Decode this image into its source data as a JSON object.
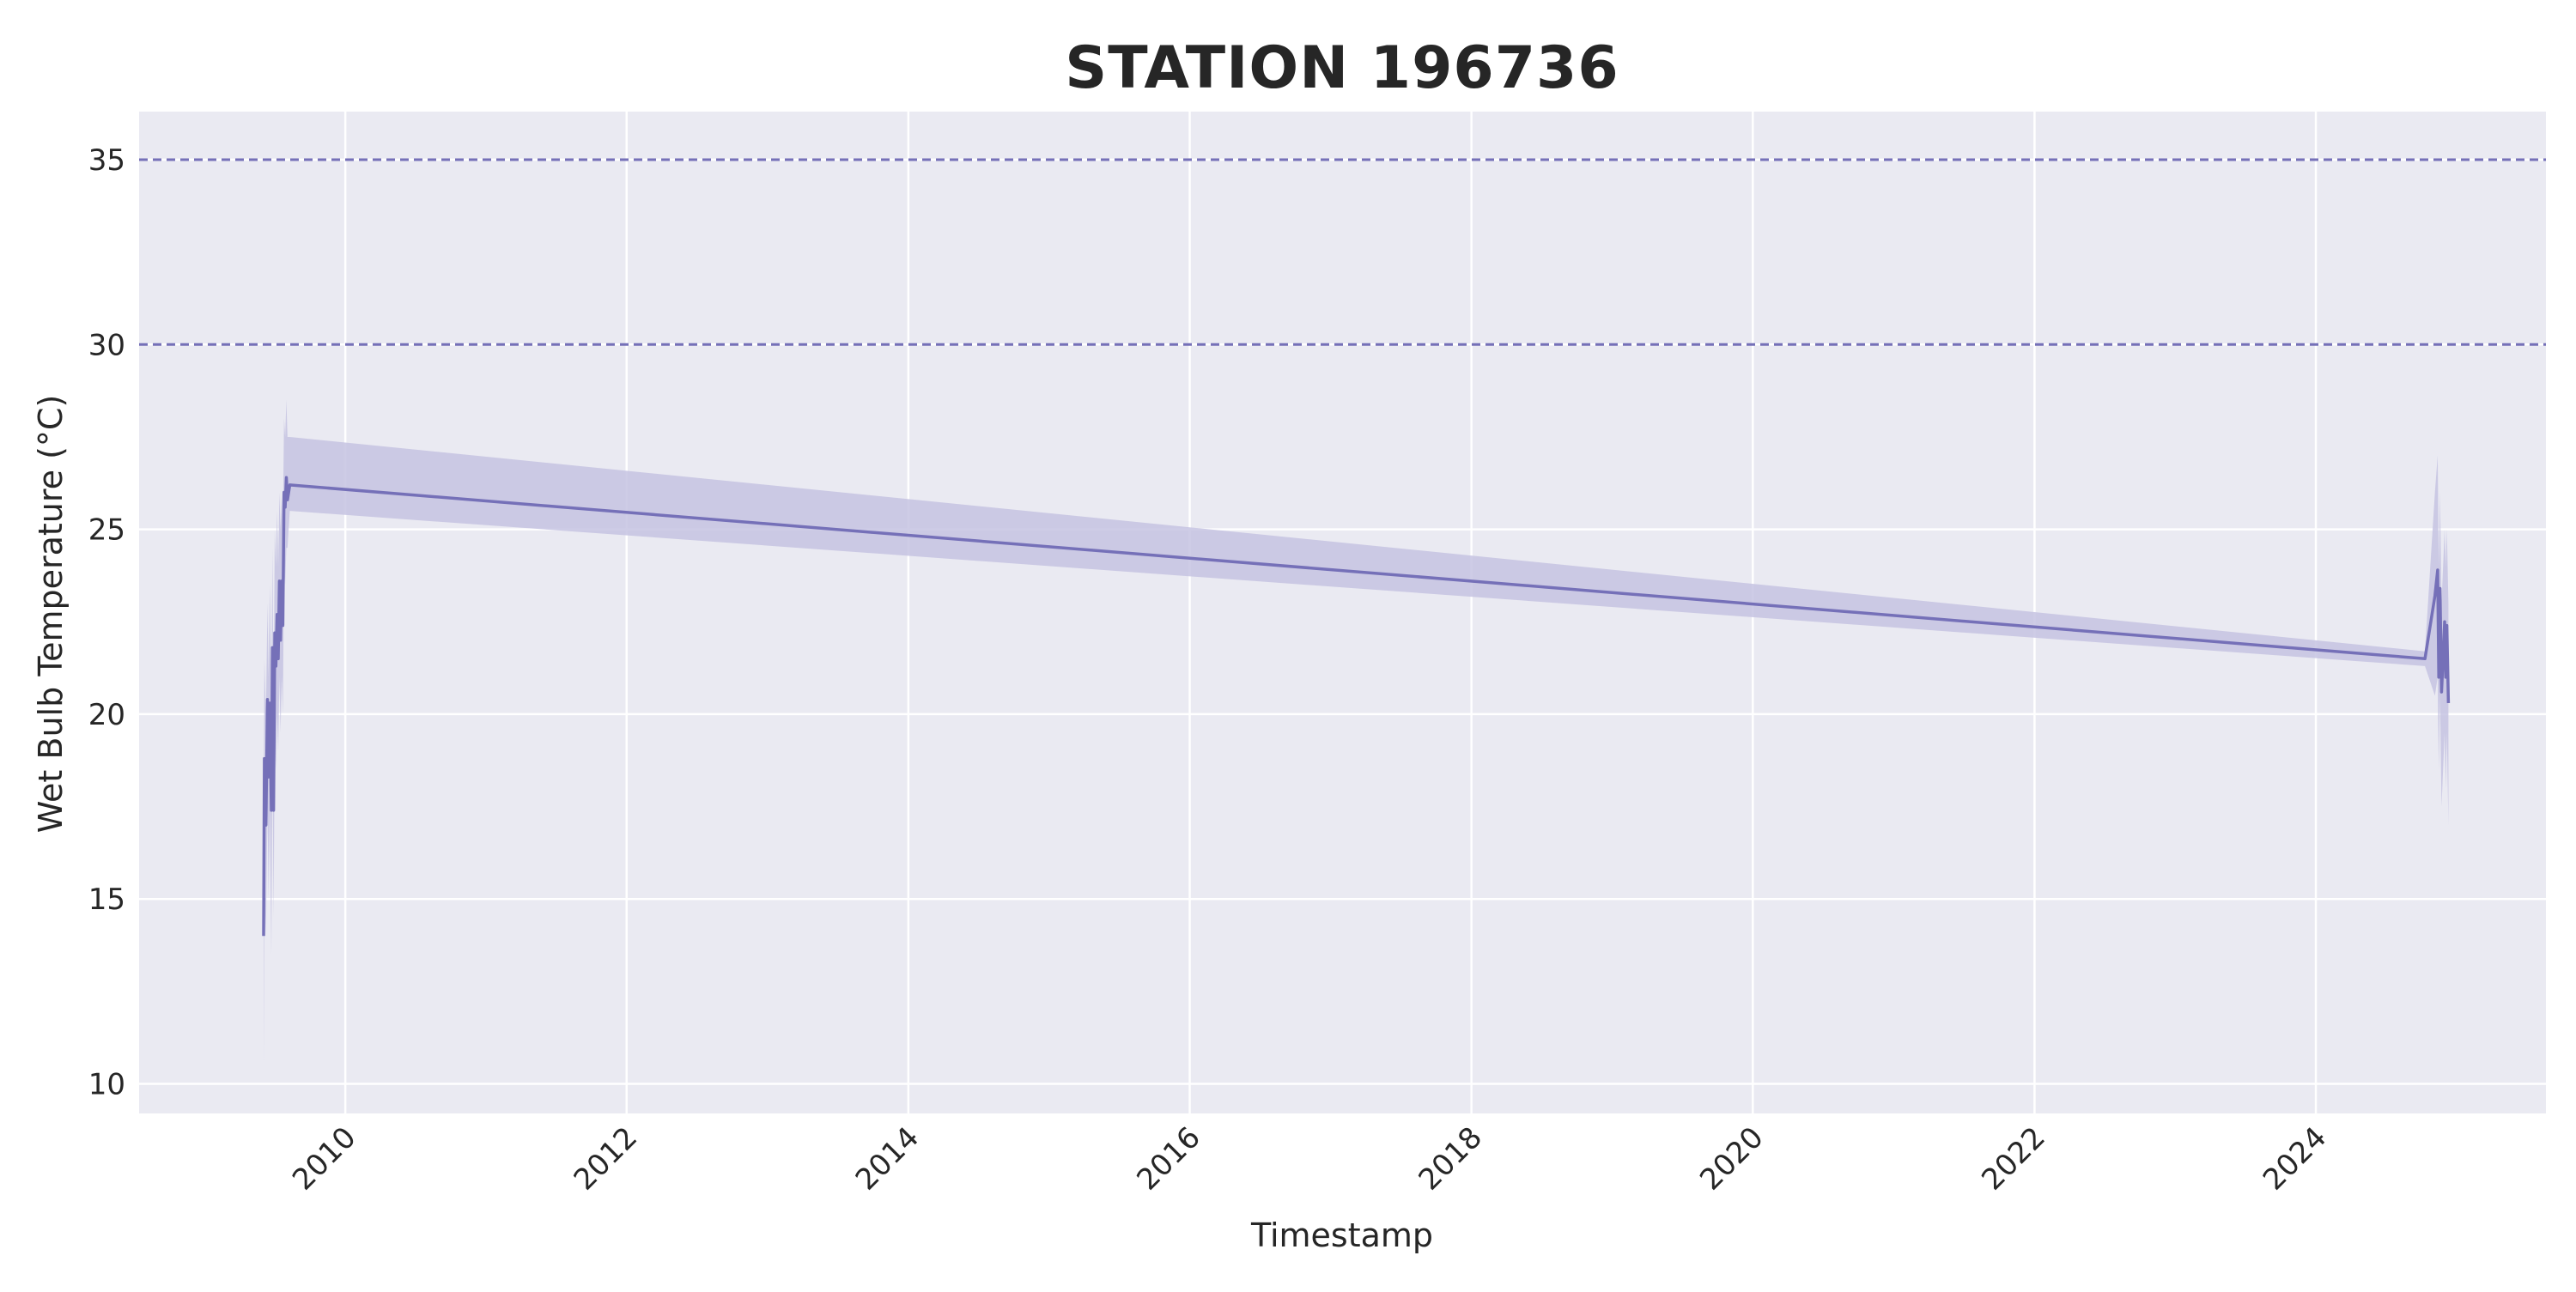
{
  "chart_data": {
    "type": "line",
    "title": "STATION 196736",
    "xlabel": "Timestamp",
    "ylabel": "Wet Bulb Temperature (°C)",
    "xlim": [
      "2008-07-15",
      "2025-08-20"
    ],
    "ylim": [
      9.2,
      36.3
    ],
    "x_ticks": [
      "2010",
      "2012",
      "2014",
      "2016",
      "2018",
      "2020",
      "2022",
      "2024"
    ],
    "y_ticks": [
      10,
      15,
      20,
      25,
      30,
      35
    ],
    "grid": true,
    "reference_lines": [
      {
        "y": 35,
        "style": "dashed"
      },
      {
        "y": 30,
        "style": "dashed"
      }
    ],
    "colors": {
      "line": "#7570b8",
      "band": "#c6c3e2",
      "plot_background": "#eaeaf2",
      "grid": "#ffffff",
      "reference_line": "#7570b8"
    },
    "series": [
      {
        "points": [
          {
            "x": "2009-06-03",
            "y": 14.0,
            "lo": 10.5,
            "hi": 16.5
          },
          {
            "x": "2009-06-05",
            "y": 18.8,
            "lo": 15.5,
            "hi": 21.5
          },
          {
            "x": "2009-06-09",
            "y": 17.0,
            "lo": 14.0,
            "hi": 20.0
          },
          {
            "x": "2009-06-13",
            "y": 20.4,
            "lo": 17.5,
            "hi": 23.0
          },
          {
            "x": "2009-06-16",
            "y": 18.3,
            "lo": 15.0,
            "hi": 21.0
          },
          {
            "x": "2009-06-19",
            "y": 20.3,
            "lo": 17.5,
            "hi": 23.5
          },
          {
            "x": "2009-06-23",
            "y": 17.4,
            "lo": 13.5,
            "hi": 20.5
          },
          {
            "x": "2009-06-26",
            "y": 21.8,
            "lo": 19.0,
            "hi": 24.5
          },
          {
            "x": "2009-06-29",
            "y": 17.4,
            "lo": 14.5,
            "hi": 20.0
          },
          {
            "x": "2009-07-02",
            "y": 22.2,
            "lo": 19.5,
            "hi": 25.0
          },
          {
            "x": "2009-07-05",
            "y": 21.3,
            "lo": 18.5,
            "hi": 24.0
          },
          {
            "x": "2009-07-08",
            "y": 22.7,
            "lo": 20.0,
            "hi": 25.5
          },
          {
            "x": "2009-07-11",
            "y": 21.5,
            "lo": 19.0,
            "hi": 24.0
          },
          {
            "x": "2009-07-14",
            "y": 23.6,
            "lo": 21.0,
            "hi": 26.0
          },
          {
            "x": "2009-07-17",
            "y": 22.0,
            "lo": 19.5,
            "hi": 25.0
          },
          {
            "x": "2009-07-20",
            "y": 23.6,
            "lo": 21.0,
            "hi": 26.0
          },
          {
            "x": "2009-07-23",
            "y": 22.4,
            "lo": 20.0,
            "hi": 25.0
          },
          {
            "x": "2009-07-26",
            "y": 26.0,
            "lo": 24.0,
            "hi": 28.0
          },
          {
            "x": "2009-07-29",
            "y": 25.6,
            "lo": 23.5,
            "hi": 27.5
          },
          {
            "x": "2009-08-01",
            "y": 26.4,
            "lo": 24.5,
            "hi": 28.5
          },
          {
            "x": "2009-08-04",
            "y": 25.8,
            "lo": 24.5,
            "hi": 27.5
          },
          {
            "x": "2009-08-10",
            "y": 26.2,
            "lo": 25.5,
            "hi": 27.5
          },
          {
            "x": "2024-10-10",
            "y": 21.5,
            "lo": 21.3,
            "hi": 21.7
          },
          {
            "x": "2024-11-05",
            "y": 23.2,
            "lo": 20.5,
            "hi": 26.0
          },
          {
            "x": "2024-11-12",
            "y": 23.9,
            "lo": 21.0,
            "hi": 27.0
          },
          {
            "x": "2024-11-15",
            "y": 21.0,
            "lo": 18.5,
            "hi": 24.0
          },
          {
            "x": "2024-11-18",
            "y": 23.4,
            "lo": 20.5,
            "hi": 26.0
          },
          {
            "x": "2024-11-22",
            "y": 20.6,
            "lo": 17.5,
            "hi": 23.0
          },
          {
            "x": "2024-11-26",
            "y": 21.5,
            "lo": 18.5,
            "hi": 24.0
          },
          {
            "x": "2024-11-30",
            "y": 22.5,
            "lo": 19.5,
            "hi": 25.0
          },
          {
            "x": "2024-12-03",
            "y": 21.0,
            "lo": 18.0,
            "hi": 24.0
          },
          {
            "x": "2024-12-06",
            "y": 22.4,
            "lo": 19.5,
            "hi": 25.0
          },
          {
            "x": "2024-12-10",
            "y": 20.3,
            "lo": 17.0,
            "hi": 23.0
          }
        ]
      }
    ]
  }
}
